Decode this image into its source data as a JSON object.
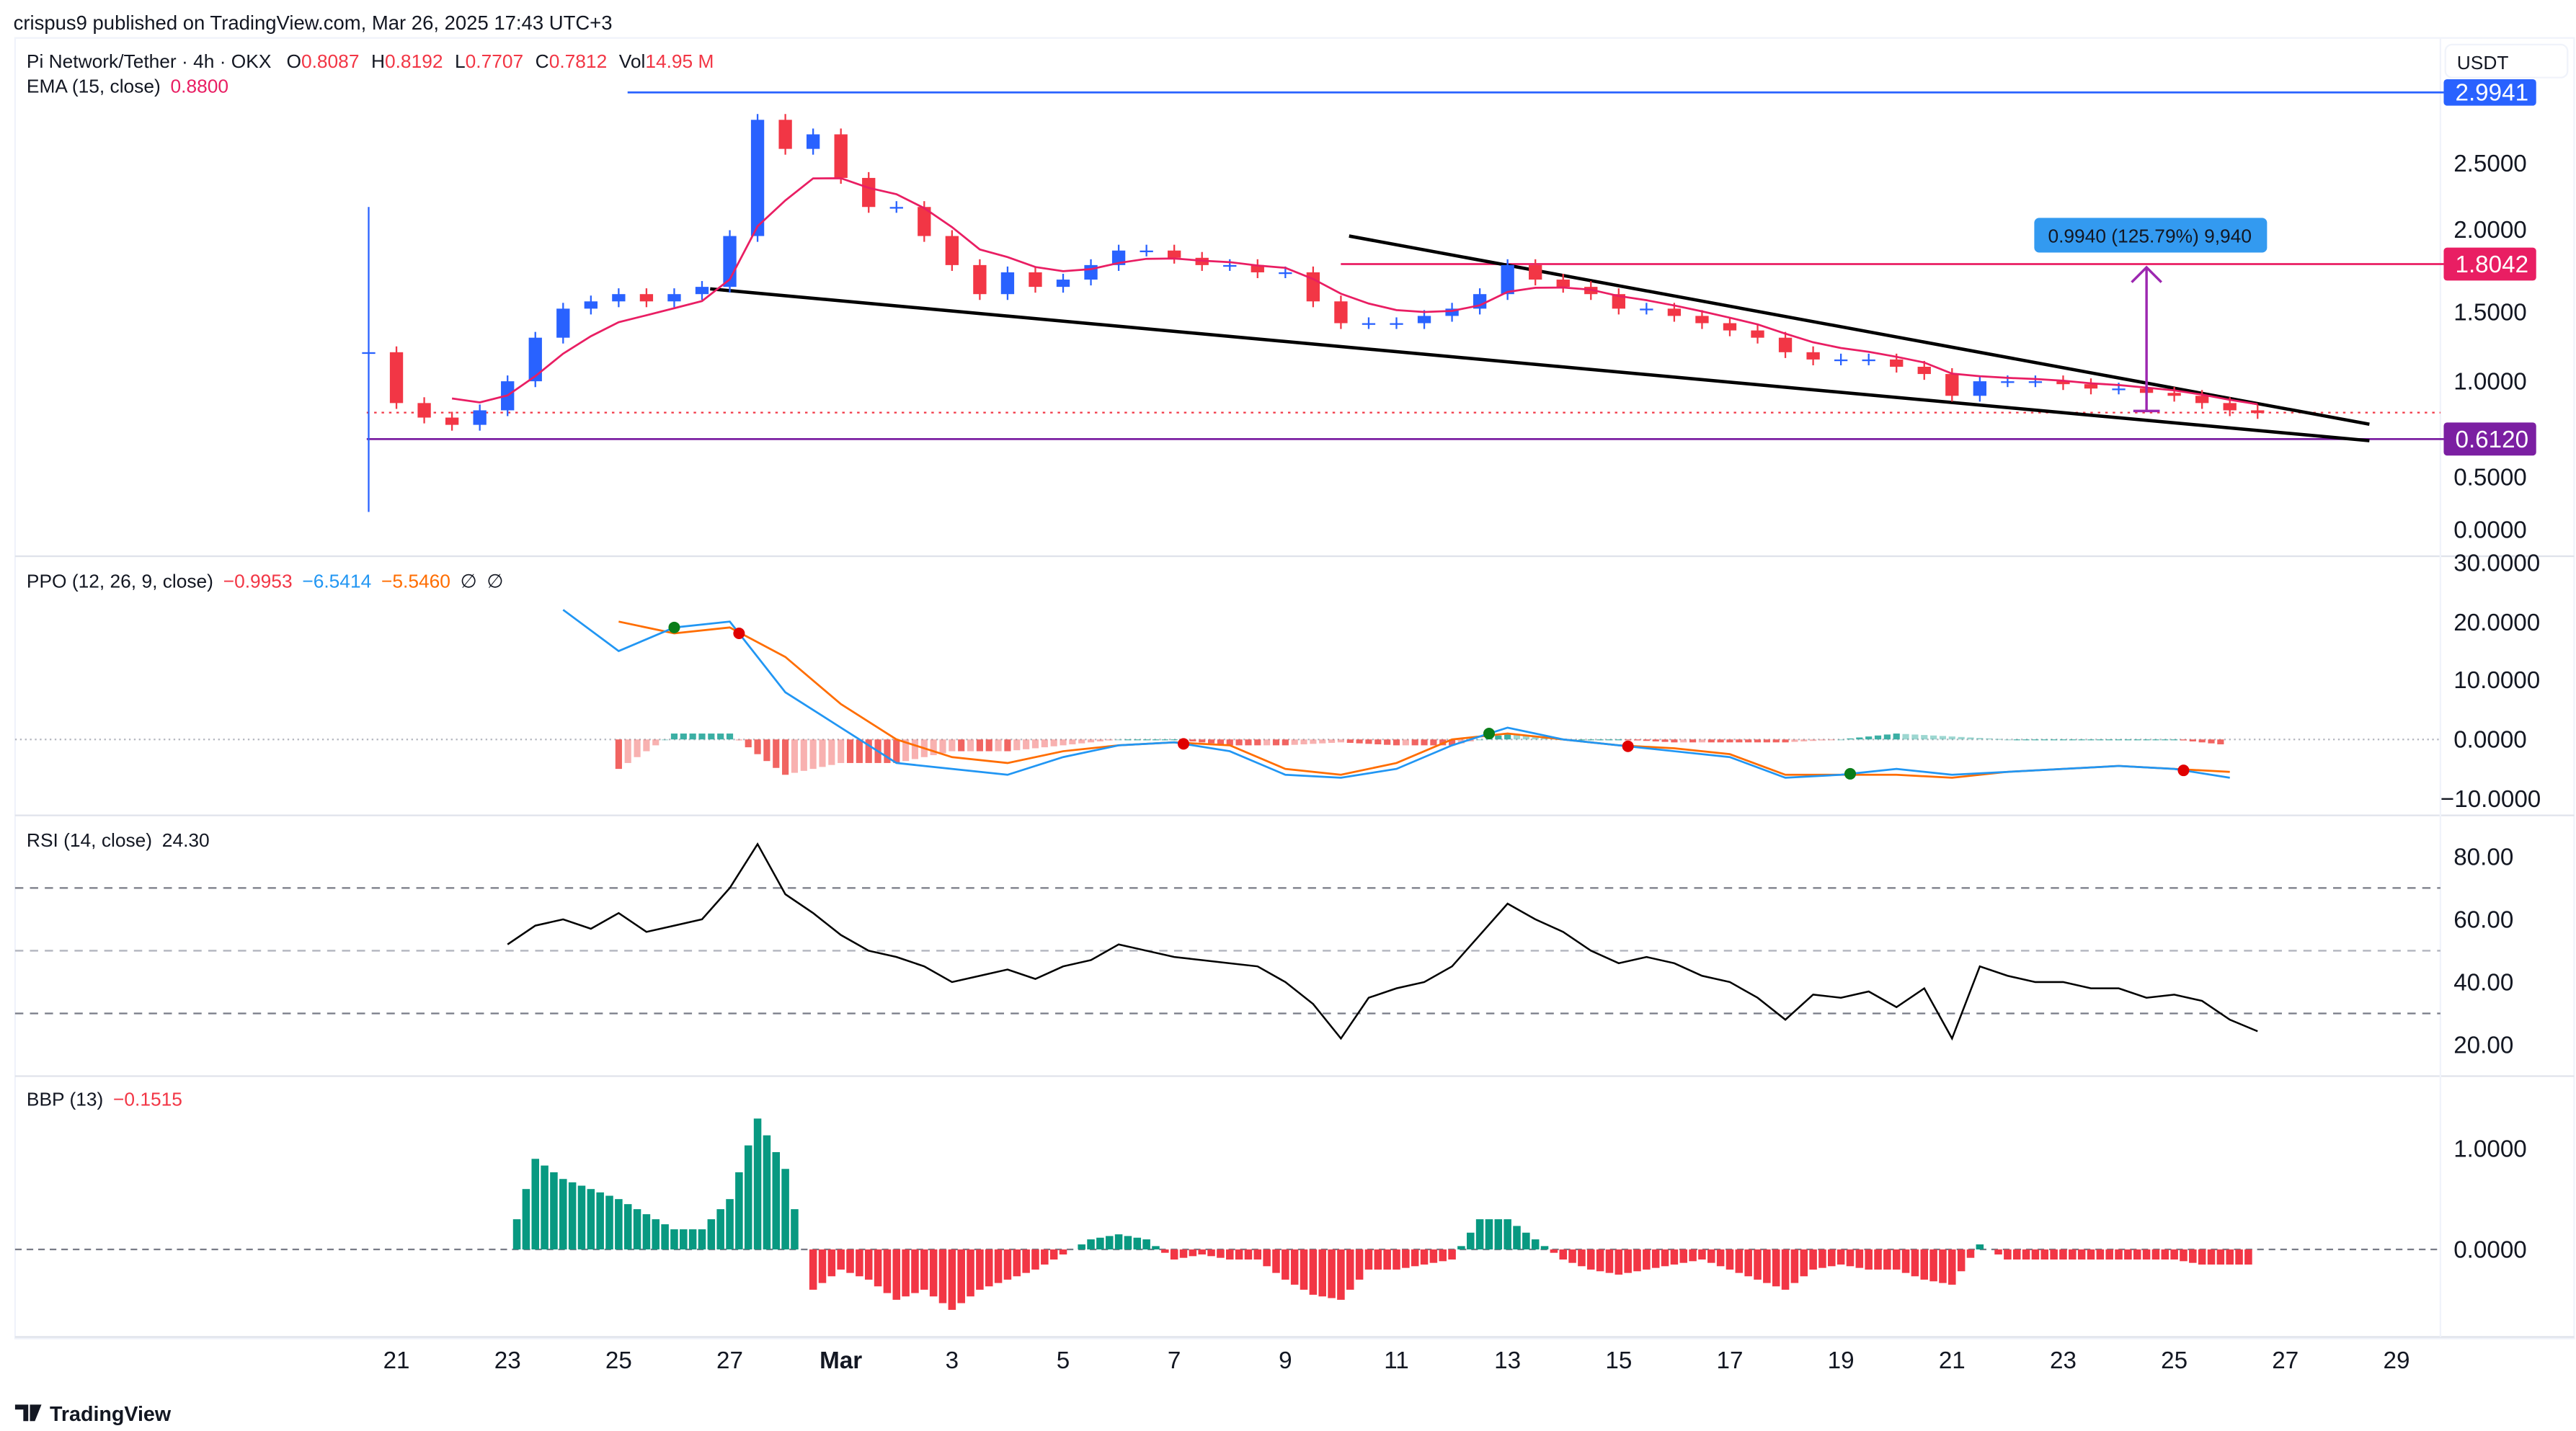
{
  "header": {
    "published": "crispus9 published on TradingView.com, Mar 26, 2025 17:43 UTC+3"
  },
  "legend": {
    "symbol": "Pi Network/Tether · 4h · OKX",
    "o_label": "O",
    "o": "0.8087",
    "h_label": "H",
    "h": "0.8192",
    "l_label": "L",
    "l": "0.7707",
    "c_label": "C",
    "c": "0.7812",
    "vol_label": "Vol",
    "vol": "14.95 M",
    "ema_label": "EMA (15, close)",
    "ema_value": "0.8800"
  },
  "currency_button": "USDT",
  "price_axis": {
    "ticks": [
      "2.5000",
      "2.0000",
      "1.5000",
      "1.0000",
      "0.5000",
      "0.0000"
    ]
  },
  "price_labels": {
    "top": "2.9941",
    "resistance": "1.8042",
    "support": "0.6120"
  },
  "measure_label": "0.9940 (125.79%) 9,940",
  "ppo": {
    "label": "PPO (12, 26, 9, close)",
    "hist": "−0.9953",
    "ppo": "−6.5414",
    "signal": "−5.5460",
    "na1": "∅",
    "na2": "∅",
    "ticks": [
      "30.0000",
      "20.0000",
      "10.0000",
      "0.0000",
      "−10.0000"
    ]
  },
  "rsi": {
    "label": "RSI (14, close)",
    "value": "24.30",
    "ticks": [
      "80.00",
      "60.00",
      "40.00",
      "20.00"
    ]
  },
  "bbp": {
    "label": "BBP (13)",
    "value": "−0.1515",
    "ticks": [
      "1.0000",
      "0.0000"
    ]
  },
  "time_axis": [
    "21",
    "23",
    "25",
    "27",
    "Mar",
    "3",
    "5",
    "7",
    "9",
    "11",
    "13",
    "15",
    "17",
    "19",
    "21",
    "23",
    "25",
    "27",
    "29"
  ],
  "footer": {
    "logo": "TradingView"
  },
  "colors": {
    "up": "#2962ff",
    "down": "#f23645",
    "ema": "#e91e63",
    "ppo": "#2196f3",
    "signal": "#ff6d00",
    "hist_pos": "#26a69a",
    "hist_neg": "#ef5350",
    "bbp_pos": "#089981",
    "bbp_neg": "#f23645",
    "top_line": "#2962ff",
    "resistance": "#e91e63",
    "support": "#7b1fa2",
    "measure": "#9c27b0",
    "measure_label_bg": "#339af0"
  },
  "chart_data": [
    {
      "type": "candlestick",
      "title": "Pi Network/Tether · 4h · OKX",
      "approx_sampling": "12h closes",
      "start": "2025-02-20 12:00",
      "interval": "12h",
      "closes": [
        1.2,
        0.85,
        0.75,
        0.7,
        0.8,
        1.0,
        1.3,
        1.5,
        1.55,
        1.6,
        1.55,
        1.6,
        1.65,
        2.0,
        2.8,
        2.6,
        2.7,
        2.4,
        2.2,
        2.2,
        2.0,
        1.8,
        1.6,
        1.75,
        1.65,
        1.7,
        1.8,
        1.9,
        1.9,
        1.85,
        1.8,
        1.8,
        1.75,
        1.75,
        1.55,
        1.4,
        1.4,
        1.4,
        1.45,
        1.5,
        1.6,
        1.8,
        1.7,
        1.65,
        1.6,
        1.5,
        1.5,
        1.45,
        1.4,
        1.35,
        1.3,
        1.2,
        1.15,
        1.15,
        1.15,
        1.1,
        1.05,
        0.9,
        1.0,
        1.0,
        1.0,
        0.98,
        0.95,
        0.95,
        0.92,
        0.9,
        0.85,
        0.8,
        0.7812
      ],
      "first_candle_wick": {
        "high": 2.2,
        "low": 0.1
      },
      "ylim": [
        0,
        3.0
      ],
      "ema_period": 15
    },
    {
      "type": "line",
      "title": "PPO (12, 26, 9, close)",
      "ylim": [
        -12,
        30
      ],
      "start": "2025-02-24 00:00",
      "interval": "24h",
      "series": [
        {
          "name": "PPO",
          "values": [
            22,
            15,
            19,
            20,
            8,
            2,
            -4,
            -5,
            -6,
            -3,
            -1,
            -0.5,
            -2,
            -6,
            -6.5,
            -5,
            -1,
            2,
            0,
            -1,
            -2,
            -3,
            -6.5,
            -6,
            -5,
            -6,
            -5.5,
            -5,
            -4.5,
            -5,
            -6.5
          ]
        },
        {
          "name": "Signal",
          "values": [
            null,
            20,
            18,
            19,
            14,
            6,
            0,
            -3,
            -4,
            -2,
            -1,
            -0.5,
            -1,
            -5,
            -6,
            -4,
            0,
            1,
            0,
            -1,
            -1.5,
            -2.5,
            -6,
            -6,
            -6,
            -6.5,
            -5.5,
            -5,
            -4.5,
            -5,
            -5.5
          ]
        }
      ]
    },
    {
      "type": "line",
      "title": "RSI (14, close)",
      "ylim": [
        15,
        88
      ],
      "levels": [
        70,
        50,
        30
      ],
      "start": "2025-02-23 00:00",
      "interval": "12h",
      "values": [
        52,
        58,
        60,
        57,
        62,
        56,
        58,
        60,
        70,
        84,
        68,
        62,
        55,
        50,
        48,
        45,
        40,
        42,
        44,
        41,
        45,
        47,
        52,
        50,
        48,
        47,
        46,
        45,
        40,
        33,
        22,
        35,
        38,
        40,
        45,
        55,
        65,
        60,
        56,
        50,
        46,
        48,
        46,
        42,
        40,
        35,
        28,
        36,
        35,
        37,
        32,
        38,
        22,
        45,
        42,
        40,
        40,
        38,
        38,
        35,
        36,
        34,
        28,
        24.3
      ]
    },
    {
      "type": "bar",
      "title": "BBP (13)",
      "ylim": [
        -0.7,
        1.6
      ],
      "start": "2025-02-22 12:00",
      "interval": "12h",
      "values": [
        0,
        0,
        0.9,
        0.7,
        0.6,
        0.5,
        0.35,
        0.2,
        0.2,
        0.5,
        1.3,
        0.8,
        -0.4,
        -0.2,
        -0.3,
        -0.5,
        -0.4,
        -0.6,
        -0.4,
        -0.3,
        -0.2,
        -0.05,
        0.1,
        0.15,
        0.1,
        -0.1,
        -0.05,
        -0.1,
        -0.1,
        -0.3,
        -0.45,
        -0.5,
        -0.2,
        -0.2,
        -0.15,
        -0.1,
        0.3,
        0.3,
        0.1,
        -0.1,
        -0.2,
        -0.25,
        -0.2,
        -0.15,
        -0.1,
        -0.2,
        -0.3,
        -0.4,
        -0.2,
        -0.15,
        -0.2,
        -0.2,
        -0.3,
        -0.35,
        0.05,
        -0.1,
        -0.1,
        -0.1,
        -0.1,
        -0.1,
        -0.1,
        -0.1,
        -0.15,
        -0.15
      ]
    }
  ]
}
